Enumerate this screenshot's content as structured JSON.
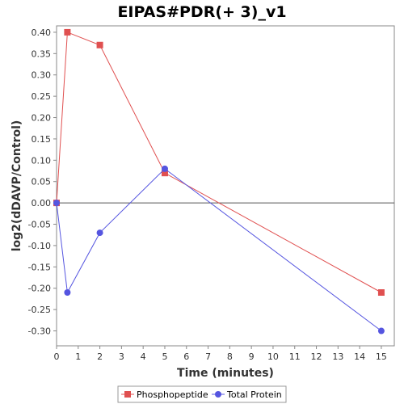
{
  "chart_data": {
    "type": "line",
    "title": "EIPAS#PDR(+ 3)_v1",
    "xlabel": "Time (minutes)",
    "ylabel": "log2(dDAVP/Control)",
    "xlim": [
      0,
      15.6
    ],
    "ylim": [
      -0.335,
      0.415
    ],
    "xticks": [
      0,
      1,
      2,
      3,
      4,
      5,
      6,
      7,
      8,
      9,
      10,
      11,
      12,
      13,
      14,
      15
    ],
    "yticks": [
      0.4,
      0.35,
      0.3,
      0.25,
      0.2,
      0.15,
      0.1,
      0.05,
      0.0,
      -0.05,
      -0.1,
      -0.15,
      -0.2,
      -0.25,
      -0.3
    ],
    "xtick_labels": [
      "0",
      "1",
      "2",
      "3",
      "4",
      "5",
      "6",
      "7",
      "8",
      "9",
      "10",
      "11",
      "12",
      "13",
      "14",
      "15"
    ],
    "ytick_labels": [
      "0.40",
      "0.35",
      "0.30",
      "0.25",
      "0.20",
      "0.15",
      "0.10",
      "0.05",
      "0.00",
      "-0.05",
      "-0.10",
      "-0.15",
      "-0.20",
      "-0.25",
      "-0.30"
    ],
    "zero_line": true,
    "grid": false,
    "legend_position": "bottom",
    "series": [
      {
        "name": "Phosphopeptide",
        "color": "#e05050",
        "marker": "square",
        "x": [
          0,
          0.5,
          2,
          5,
          15
        ],
        "y": [
          0.0,
          0.4,
          0.37,
          0.07,
          -0.21
        ]
      },
      {
        "name": "Total Protein",
        "color": "#5555e0",
        "marker": "circle",
        "x": [
          0,
          0.5,
          2,
          5,
          15
        ],
        "y": [
          0.0,
          -0.21,
          -0.07,
          0.08,
          -0.3
        ]
      }
    ]
  }
}
